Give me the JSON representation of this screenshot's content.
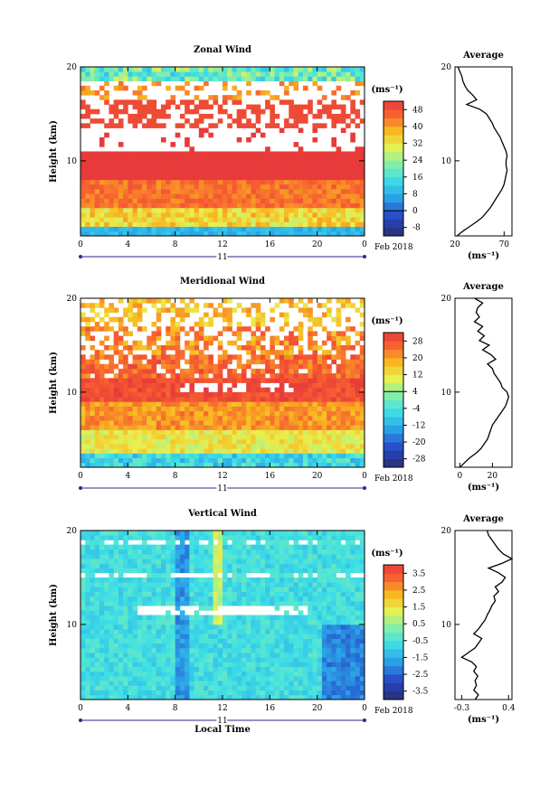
{
  "chart_data": [
    {
      "type": "heatmap",
      "title": "Zonal Wind",
      "ylabel": "Height (km)",
      "xlabel": "",
      "x_ticks": [
        "0",
        "4",
        "8",
        "12",
        "16",
        "20",
        "0"
      ],
      "y_ticks": [
        "10",
        "20"
      ],
      "ylim": [
        2,
        20
      ],
      "date_label": "11",
      "date_suffix": "Feb 2018",
      "colorbar": {
        "unit": "(ms⁻¹)",
        "tick_labels": [
          "48",
          "40",
          "32",
          "24",
          "16",
          "8",
          "0",
          "-8"
        ],
        "tick_values": [
          48,
          40,
          32,
          24,
          16,
          8,
          0,
          -8
        ],
        "range": [
          -12,
          52
        ]
      },
      "profile": {
        "title": "Average",
        "x_ticks": [
          "20",
          "70"
        ],
        "x_tick_values": [
          20,
          70
        ],
        "xlim": [
          20,
          78
        ],
        "xlabel": "(ms⁻¹)",
        "heights": [
          2.0,
          2.5,
          3.0,
          3.5,
          4.0,
          4.5,
          5.0,
          5.5,
          6.0,
          6.5,
          7.0,
          7.5,
          8.0,
          8.5,
          9.0,
          9.5,
          10.0,
          10.5,
          11.0,
          11.5,
          12.0,
          12.5,
          13.0,
          13.5,
          14.0,
          14.5,
          15.0,
          15.5,
          16.0,
          16.5,
          17.0,
          17.5,
          18.0,
          18.5,
          19.0,
          19.5,
          20.0
        ],
        "values": [
          22,
          28,
          35,
          42,
          48,
          52,
          56,
          59,
          62,
          65,
          68,
          70,
          71,
          72,
          73,
          72,
          72,
          73,
          72,
          70,
          68,
          66,
          63,
          60,
          58,
          55,
          52,
          45,
          32,
          42,
          38,
          33,
          30,
          28,
          27,
          25,
          23
        ]
      }
    },
    {
      "type": "heatmap",
      "title": "Meridional Wind",
      "ylabel": "Height (km)",
      "xlabel": "",
      "x_ticks": [
        "0",
        "4",
        "8",
        "12",
        "16",
        "20",
        "0"
      ],
      "y_ticks": [
        "10",
        "20"
      ],
      "ylim": [
        2,
        20
      ],
      "date_label": "11",
      "date_suffix": "Feb 2018",
      "colorbar": {
        "unit": "(ms⁻¹)",
        "tick_labels": [
          "28",
          "20",
          "12",
          "4",
          "-4",
          "-12",
          "-20",
          "-28"
        ],
        "tick_values": [
          28,
          20,
          12,
          4,
          -4,
          -12,
          -20,
          -28
        ],
        "range": [
          -32,
          32
        ]
      },
      "profile": {
        "title": "Average",
        "x_ticks": [
          "0",
          "20"
        ],
        "x_tick_values": [
          0,
          20
        ],
        "xlim": [
          -3,
          32
        ],
        "xlabel": "(ms⁻¹)",
        "heights": [
          2.0,
          2.5,
          3.0,
          3.5,
          4.0,
          4.5,
          5.0,
          5.5,
          6.0,
          6.5,
          7.0,
          7.5,
          8.0,
          8.5,
          9.0,
          9.5,
          10.0,
          10.5,
          11.0,
          11.5,
          12.0,
          12.5,
          13.0,
          13.5,
          14.0,
          14.5,
          15.0,
          15.5,
          16.0,
          16.5,
          17.0,
          17.5,
          18.0,
          18.5,
          19.0,
          19.5,
          20.0
        ],
        "values": [
          0,
          3,
          6,
          10,
          13,
          15,
          17,
          18,
          19,
          20,
          22,
          24,
          26,
          28,
          29,
          30,
          29,
          26,
          25,
          23,
          21,
          20,
          17,
          22,
          19,
          14,
          18,
          12,
          15,
          11,
          14,
          9,
          12,
          10,
          11,
          14,
          9
        ]
      }
    },
    {
      "type": "heatmap",
      "title": "Vertical Wind",
      "ylabel": "Height (km)",
      "xlabel": "Local Time",
      "x_ticks": [
        "0",
        "4",
        "8",
        "12",
        "16",
        "20",
        "0"
      ],
      "y_ticks": [
        "10",
        "20"
      ],
      "ylim": [
        2,
        20
      ],
      "date_label": "11",
      "date_suffix": "Feb 2018",
      "colorbar": {
        "unit": "(ms⁻¹)",
        "tick_labels": [
          "3.5",
          "2.5",
          "1.5",
          "0.5",
          "-0.5",
          "-1.5",
          "-2.5",
          "-3.5"
        ],
        "tick_values": [
          3.5,
          2.5,
          1.5,
          0.5,
          -0.5,
          -1.5,
          -2.5,
          -3.5
        ],
        "range": [
          -4,
          4
        ]
      },
      "profile": {
        "title": "Average",
        "x_ticks": [
          "-0.3",
          "0.4"
        ],
        "x_tick_values": [
          -0.3,
          0.4
        ],
        "xlim": [
          -0.4,
          0.45
        ],
        "xlabel": "(ms⁻¹)",
        "heights": [
          2.0,
          2.5,
          3.0,
          3.5,
          4.0,
          4.5,
          5.0,
          5.5,
          6.0,
          6.5,
          7.0,
          7.5,
          8.0,
          8.5,
          9.0,
          9.5,
          10.0,
          10.5,
          11.0,
          11.5,
          12.0,
          12.5,
          13.0,
          13.5,
          14.0,
          14.5,
          15.0,
          15.5,
          16.0,
          16.5,
          17.0,
          17.5,
          18.0,
          18.5,
          19.0,
          19.5,
          20.0
        ],
        "values": [
          -0.1,
          -0.05,
          -0.12,
          -0.08,
          -0.1,
          -0.06,
          -0.12,
          -0.08,
          -0.15,
          -0.3,
          -0.2,
          -0.1,
          -0.05,
          0.0,
          -0.12,
          -0.05,
          0.0,
          0.05,
          0.08,
          0.12,
          0.15,
          0.2,
          0.18,
          0.25,
          0.2,
          0.3,
          0.35,
          0.25,
          0.1,
          0.3,
          0.45,
          0.32,
          0.25,
          0.2,
          0.15,
          0.1,
          0.08
        ]
      }
    }
  ]
}
